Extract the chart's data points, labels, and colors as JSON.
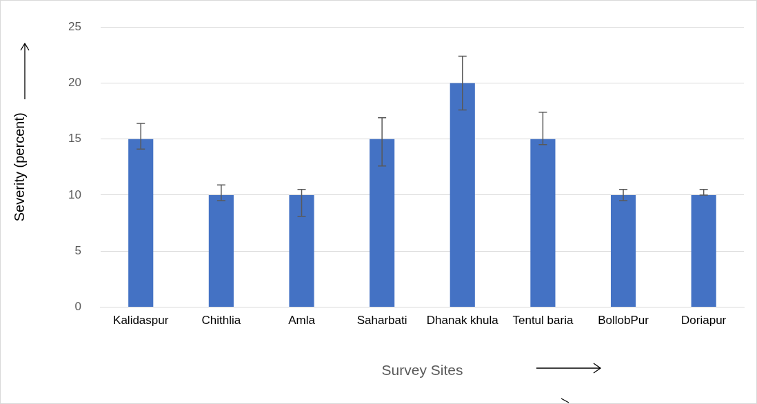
{
  "chart_data": {
    "type": "bar",
    "xlabel": "Survey Sites",
    "ylabel": "Severity (percent)",
    "categories": [
      "Kalidaspur",
      "Chithlia",
      "Amla",
      "Saharbati",
      "Dhanak khula",
      "Tentul baria",
      "BollobPur",
      "Doriapur"
    ],
    "values": [
      15,
      10,
      10,
      15,
      20,
      15,
      10,
      10
    ],
    "errors": [
      [
        14.1,
        16.4
      ],
      [
        9.5,
        10.9
      ],
      [
        8.1,
        10.5
      ],
      [
        12.6,
        16.9
      ],
      [
        17.6,
        22.4
      ],
      [
        14.5,
        17.4
      ],
      [
        9.5,
        10.5
      ],
      [
        10,
        10.5
      ]
    ],
    "color": "#4472c4",
    "ylim": [
      0,
      25
    ],
    "yticks": [
      0,
      5,
      10,
      15,
      20,
      25
    ],
    "grid": "y",
    "legend": false
  }
}
